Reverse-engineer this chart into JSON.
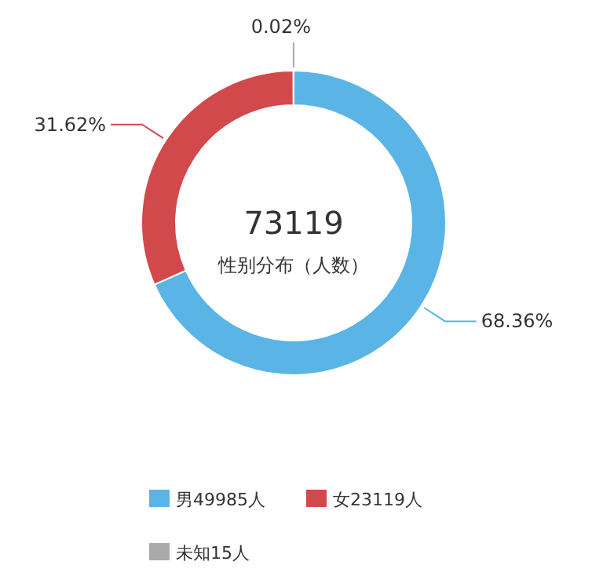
{
  "chart_data": {
    "type": "donut",
    "title": "73119",
    "subtitle": "性别分布（人数）",
    "categories": [
      "男49985人",
      "女23119人",
      "未知15人"
    ],
    "values": [
      68.36,
      31.62,
      0.02
    ],
    "colors": [
      "#5ab4e5",
      "#d2494b",
      "#aaaaaa"
    ],
    "value_labels": [
      "68.36%",
      "31.62%",
      "0.02%"
    ],
    "legend": "bottom"
  }
}
